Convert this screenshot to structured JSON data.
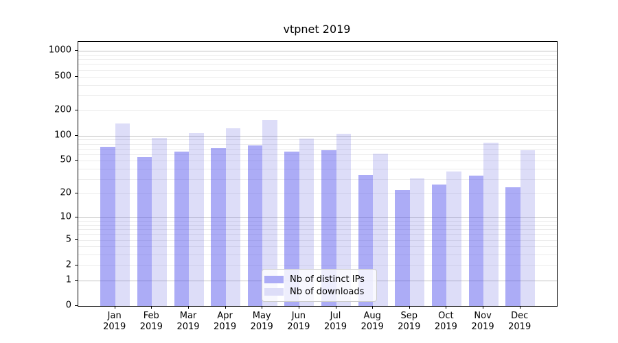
{
  "title": "vtpnet 2019",
  "axes": {
    "y_tick_labels": [
      "0",
      "1",
      "2",
      "5",
      "10",
      "20",
      "50",
      "100",
      "200",
      "500",
      "1000"
    ],
    "x_months": [
      "Jan",
      "Feb",
      "Mar",
      "Apr",
      "May",
      "Jun",
      "Jul",
      "Aug",
      "Sep",
      "Oct",
      "Nov",
      "Dec"
    ],
    "year": "2019"
  },
  "legend": {
    "items": [
      {
        "label": "Nb of distinct IPs"
      },
      {
        "label": "Nb of downloads"
      }
    ]
  },
  "colors": {
    "bar_dark_fill": "rgba(70,70,235,0.45)",
    "bar_light_fill": "rgba(100,100,225,0.22)",
    "bar_dark_solid": "#acacf6",
    "bar_light_solid": "#ddddf8",
    "grid_major": "#c0c0c0",
    "grid_minor": "#ebebeb"
  },
  "chart_data": {
    "type": "bar",
    "title": "vtpnet 2019",
    "categories": [
      "Jan 2019",
      "Feb 2019",
      "Mar 2019",
      "Apr 2019",
      "May 2019",
      "Jun 2019",
      "Jul 2019",
      "Aug 2019",
      "Sep 2019",
      "Oct 2019",
      "Nov 2019",
      "Dec 2019"
    ],
    "series": [
      {
        "name": "Nb of distinct IPs",
        "color": "#acacf6",
        "fill": "rgba(70,70,235,0.45)",
        "values": [
          73,
          55,
          65,
          71,
          77,
          64,
          67,
          34,
          22,
          26,
          33,
          24
        ]
      },
      {
        "name": "Nb of downloads",
        "color": "#ddddf8",
        "fill": "rgba(100,100,225,0.22)",
        "values": [
          140,
          94,
          108,
          123,
          152,
          93,
          106,
          61,
          31,
          37,
          82,
          67
        ]
      }
    ],
    "y_scale": "log1p (position proportional to log10(value+1))",
    "y_ticks": [
      0,
      1,
      2,
      5,
      10,
      20,
      50,
      100,
      200,
      500,
      1000
    ],
    "y_top_value": 1280,
    "grid": {
      "major_at": [
        1,
        10,
        100,
        1000
      ],
      "minor_at": "2-9 of each decade"
    },
    "legend_position": "lower center",
    "xlabel": "",
    "ylabel": ""
  }
}
